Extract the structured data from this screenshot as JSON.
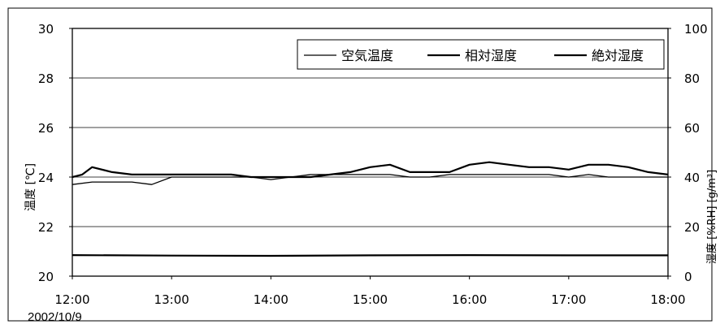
{
  "page": {
    "date_label": "2002/10/9"
  },
  "chart_data": {
    "type": "line",
    "title": "",
    "xlabel": "",
    "ylabel_left": "温度 [℃]",
    "ylabel_right": "湿度 [%RH] [g/m³]",
    "x_ticks": [
      "12:00",
      "13:00",
      "14:00",
      "15:00",
      "16:00",
      "17:00",
      "18:00"
    ],
    "y_left_ticks": [
      30,
      28,
      26,
      24,
      22,
      20
    ],
    "y_right_ticks": [
      100,
      80,
      60,
      40,
      20,
      0
    ],
    "ylim_left": [
      20,
      30
    ],
    "ylim_right": [
      0,
      100
    ],
    "xlim_hours": [
      12,
      18
    ],
    "grid": true,
    "legend_position": "top-right",
    "series": [
      {
        "name": "空気温度",
        "axis": "left",
        "x": [
          12.0,
          12.2,
          12.4,
          12.6,
          12.8,
          13.0,
          13.2,
          13.4,
          13.6,
          13.8,
          14.0,
          14.2,
          14.4,
          14.6,
          14.8,
          15.0,
          15.2,
          15.4,
          15.6,
          15.8,
          16.0,
          16.2,
          16.4,
          16.6,
          16.8,
          17.0,
          17.2,
          17.4,
          17.6,
          17.8,
          18.0
        ],
        "values": [
          23.7,
          23.8,
          23.8,
          23.8,
          23.7,
          24.0,
          24.0,
          24.0,
          24.0,
          24.0,
          23.9,
          24.0,
          24.1,
          24.1,
          24.1,
          24.1,
          24.1,
          24.0,
          24.0,
          24.1,
          24.1,
          24.1,
          24.1,
          24.1,
          24.1,
          24.0,
          24.1,
          24.0,
          24.0,
          24.0,
          24.0
        ]
      },
      {
        "name": "相対湿度",
        "axis": "right",
        "x": [
          12.0,
          12.1,
          12.2,
          12.4,
          12.6,
          12.8,
          13.0,
          13.2,
          13.4,
          13.6,
          13.8,
          14.0,
          14.2,
          14.4,
          14.6,
          14.8,
          15.0,
          15.2,
          15.4,
          15.6,
          15.8,
          16.0,
          16.2,
          16.4,
          16.6,
          16.8,
          17.0,
          17.2,
          17.4,
          17.6,
          17.8,
          18.0
        ],
        "values": [
          40,
          41,
          44,
          42,
          41,
          41,
          41,
          41,
          41,
          41,
          40,
          40,
          40,
          40,
          41,
          42,
          44,
          45,
          42,
          42,
          42,
          45,
          46,
          45,
          44,
          44,
          43,
          45,
          45,
          44,
          42,
          41
        ]
      },
      {
        "name": "絶対湿度",
        "axis": "right",
        "x": [
          12.0,
          13.0,
          14.0,
          15.0,
          16.0,
          17.0,
          18.0
        ],
        "values": [
          8.5,
          8.3,
          8.2,
          8.4,
          8.5,
          8.4,
          8.4
        ]
      }
    ]
  }
}
